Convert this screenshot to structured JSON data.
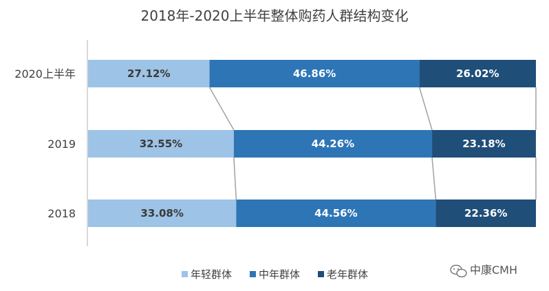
{
  "chart_data": {
    "type": "bar",
    "orientation": "horizontal",
    "stacked": "100%",
    "title": "2018年-2020上半年整体购药人群结构变化",
    "categories": [
      "2020上半年",
      "2019",
      "2018"
    ],
    "series": [
      {
        "name": "年轻群体",
        "values": [
          27.12,
          32.55,
          33.08
        ],
        "labels": [
          "27.12%",
          "32.55%",
          "33.08%"
        ],
        "color": "#9dc3e6",
        "label_color": "#3a3a3a"
      },
      {
        "name": "中年群体",
        "values": [
          46.86,
          44.26,
          44.56
        ],
        "labels": [
          "46.86%",
          "44.26%",
          "44.56%"
        ],
        "color": "#2e75b6",
        "label_color": "#ffffff"
      },
      {
        "name": "老年群体",
        "values": [
          26.02,
          23.18,
          22.36
        ],
        "labels": [
          "26.02%",
          "23.18%",
          "22.36%"
        ],
        "color": "#1f4e79",
        "label_color": "#ffffff"
      }
    ],
    "xlim": [
      0,
      100
    ],
    "series_lines": true,
    "legend_position": "bottom",
    "grid": false
  },
  "watermark": {
    "text": "中康CMH",
    "icon": "wechat-icon"
  }
}
